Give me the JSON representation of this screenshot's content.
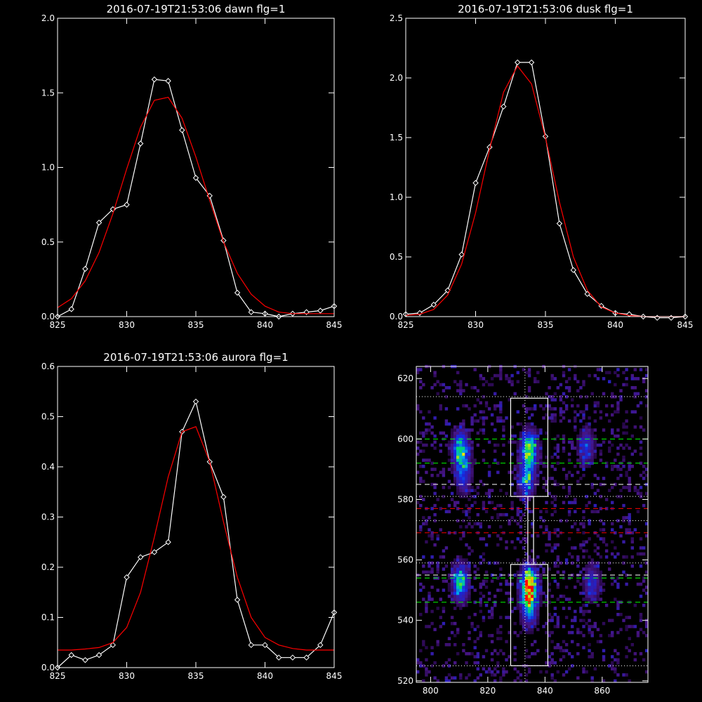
{
  "chart_data": [
    {
      "type": "line",
      "title": "2016-07-19T21:53:06 dawn flg=1",
      "xlim": [
        825,
        845
      ],
      "ylim": [
        0,
        2.0
      ],
      "xticks": [
        "825",
        "830",
        "835",
        "840",
        "845"
      ],
      "yticks": [
        "0.0",
        "0.5",
        "1.0",
        "1.5",
        "2.0"
      ],
      "series": [
        {
          "kind": "data",
          "color": "#ffffff",
          "x": [
            825,
            826,
            827,
            828,
            829,
            830,
            831,
            832,
            833,
            834,
            835,
            836,
            837,
            838,
            839,
            840,
            841,
            842,
            843,
            844,
            845
          ],
          "y": [
            0.0,
            0.05,
            0.32,
            0.63,
            0.72,
            0.75,
            1.16,
            1.59,
            1.58,
            1.25,
            0.93,
            0.81,
            0.51,
            0.16,
            0.03,
            0.02,
            0.0,
            0.02,
            0.03,
            0.04,
            0.07
          ]
        },
        {
          "kind": "fit",
          "color": "#ff0000",
          "x": [
            825,
            826,
            827,
            828,
            829,
            830,
            831,
            832,
            833,
            834,
            835,
            836,
            837,
            838,
            839,
            840,
            841,
            842,
            843,
            844,
            845
          ],
          "y": [
            0.06,
            0.12,
            0.24,
            0.43,
            0.69,
            0.99,
            1.27,
            1.45,
            1.47,
            1.33,
            1.07,
            0.78,
            0.5,
            0.29,
            0.15,
            0.07,
            0.03,
            0.02,
            0.02,
            0.02,
            0.02
          ]
        }
      ]
    },
    {
      "type": "line",
      "title": "2016-07-19T21:53:06 dusk flg=1",
      "xlim": [
        825,
        845
      ],
      "ylim": [
        0,
        2.5
      ],
      "xticks": [
        "825",
        "830",
        "835",
        "840",
        "845"
      ],
      "yticks": [
        "0.0",
        "0.5",
        "1.0",
        "1.5",
        "2.0",
        "2.5"
      ],
      "series": [
        {
          "kind": "data",
          "color": "#ffffff",
          "x": [
            825,
            826,
            827,
            828,
            829,
            830,
            831,
            832,
            833,
            834,
            835,
            836,
            837,
            838,
            839,
            840,
            841,
            842,
            843,
            844,
            845
          ],
          "y": [
            0.02,
            0.03,
            0.1,
            0.22,
            0.52,
            1.12,
            1.42,
            1.76,
            2.13,
            2.13,
            1.51,
            0.78,
            0.39,
            0.19,
            0.09,
            0.03,
            0.02,
            0.0,
            -0.01,
            -0.01,
            0.0
          ]
        },
        {
          "kind": "fit",
          "color": "#ff0000",
          "x": [
            825,
            826,
            827,
            828,
            829,
            830,
            831,
            832,
            833,
            834,
            835,
            836,
            837,
            838,
            839,
            840,
            841,
            842,
            843,
            844,
            845
          ],
          "y": [
            0.01,
            0.02,
            0.06,
            0.18,
            0.44,
            0.87,
            1.4,
            1.88,
            2.1,
            1.95,
            1.5,
            0.96,
            0.5,
            0.22,
            0.08,
            0.03,
            0.01,
            0.0,
            0.0,
            0.0,
            0.0
          ]
        }
      ]
    },
    {
      "type": "line",
      "title": "2016-07-19T21:53:06 aurora flg=1",
      "xlim": [
        825,
        845
      ],
      "ylim": [
        0,
        0.6
      ],
      "xticks": [
        "825",
        "830",
        "835",
        "840",
        "845"
      ],
      "yticks": [
        "0.0",
        "0.1",
        "0.2",
        "0.3",
        "0.4",
        "0.5",
        "0.6"
      ],
      "series": [
        {
          "kind": "data",
          "color": "#ffffff",
          "x": [
            825,
            826,
            827,
            828,
            829,
            830,
            831,
            832,
            833,
            834,
            835,
            836,
            837,
            838,
            839,
            840,
            841,
            842,
            843,
            844,
            845
          ],
          "y": [
            0.0,
            0.025,
            0.015,
            0.025,
            0.045,
            0.18,
            0.22,
            0.23,
            0.25,
            0.47,
            0.53,
            0.41,
            0.34,
            0.135,
            0.045,
            0.045,
            0.02,
            0.02,
            0.02,
            0.045,
            0.11
          ]
        },
        {
          "kind": "fit",
          "color": "#ff0000",
          "x": [
            825,
            826,
            827,
            828,
            829,
            830,
            831,
            832,
            833,
            834,
            835,
            836,
            837,
            838,
            839,
            840,
            841,
            842,
            843,
            844,
            845
          ],
          "y": [
            0.035,
            0.035,
            0.037,
            0.04,
            0.05,
            0.08,
            0.15,
            0.26,
            0.38,
            0.47,
            0.48,
            0.41,
            0.29,
            0.18,
            0.1,
            0.06,
            0.045,
            0.038,
            0.035,
            0.035,
            0.035
          ]
        }
      ]
    },
    {
      "type": "heatmap",
      "title": "",
      "xlim": [
        795,
        876
      ],
      "ylim": [
        519.5,
        624
      ],
      "xticks": [
        "800",
        "820",
        "840",
        "860"
      ],
      "yticks": [
        "520",
        "540",
        "560",
        "580",
        "600",
        "620"
      ],
      "hot_spots": [
        {
          "x": 810,
          "y": 596,
          "intensity": 0.62
        },
        {
          "x": 811,
          "y": 588,
          "intensity": 0.35
        },
        {
          "x": 834,
          "y": 596,
          "intensity": 0.72
        },
        {
          "x": 833,
          "y": 586,
          "intensity": 0.48
        },
        {
          "x": 810,
          "y": 552,
          "intensity": 0.6
        },
        {
          "x": 834,
          "y": 551,
          "intensity": 1.0
        },
        {
          "x": 834,
          "y": 543,
          "intensity": 0.4
        },
        {
          "x": 854,
          "y": 597,
          "intensity": 0.3
        },
        {
          "x": 856,
          "y": 552,
          "intensity": 0.3
        }
      ],
      "boxes": [
        {
          "x0": 828,
          "x1": 841,
          "y0": 581,
          "y1": 613.5
        },
        {
          "x0": 828,
          "x1": 841,
          "y0": 525,
          "y1": 558.5
        },
        {
          "x0": 834,
          "x1": 836,
          "y0": 558.5,
          "y1": 581
        }
      ],
      "vline_dotted": 833,
      "hlines": [
        {
          "y": 614,
          "style": "dotted",
          "color": "#ffffff"
        },
        {
          "y": 600,
          "style": "dashed",
          "color": "#00ff00"
        },
        {
          "y": 592,
          "style": "dashed",
          "color": "#00ff00"
        },
        {
          "y": 585,
          "style": "dashed",
          "color": "#ffffff"
        },
        {
          "y": 581,
          "style": "dotted",
          "color": "#ffffff"
        },
        {
          "y": 577,
          "style": "dashed",
          "color": "#ff0000"
        },
        {
          "y": 573,
          "style": "dotted",
          "color": "#ffffff"
        },
        {
          "y": 569,
          "style": "dashed",
          "color": "#ff0000"
        },
        {
          "y": 559,
          "style": "dotted",
          "color": "#ffffff"
        },
        {
          "y": 555,
          "style": "dashed",
          "color": "#ffffff"
        },
        {
          "y": 554,
          "style": "dashed",
          "color": "#00ff00"
        },
        {
          "y": 546,
          "style": "dashed",
          "color": "#00ff00"
        },
        {
          "y": 525,
          "style": "dotted",
          "color": "#ffffff"
        }
      ]
    }
  ]
}
